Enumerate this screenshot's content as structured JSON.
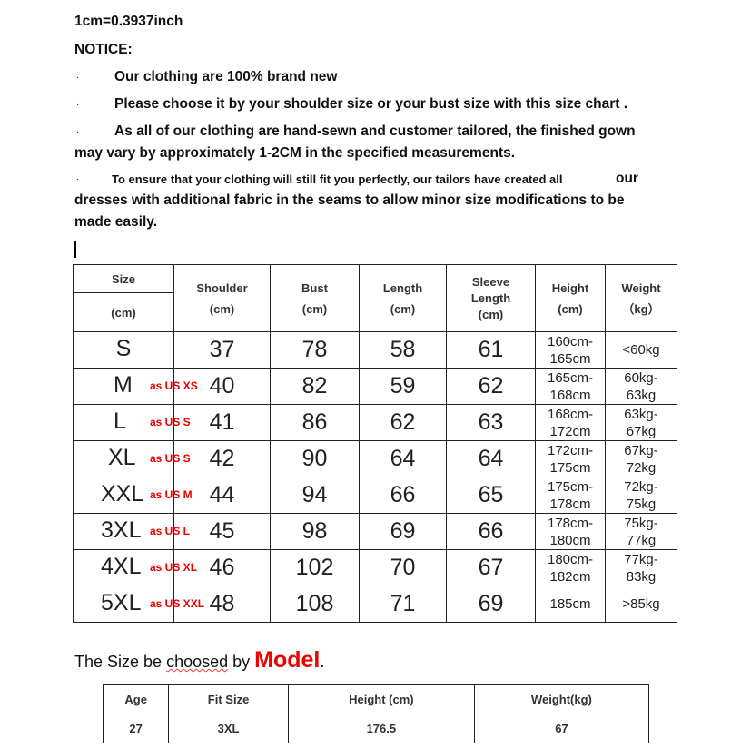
{
  "conversion": "1cm=0.3937inch",
  "notice_title": "NOTICE:",
  "notices": [
    "Our clothing are 100% brand new",
    "Please choose it by your shoulder size or your bust size with this size chart .",
    "As all of our clothing are hand-sewn and customer tailored, the finished gown",
    "may vary by approximately 1-2CM in the specified measurements.",
    "To ensure that your clothing will still fit you perfectly, our tailors have created all",
    "our",
    "dresses with additional fabric in the seams to allow minor size modifications to be",
    "made easily."
  ],
  "bullet": "·",
  "size_table": {
    "headers": {
      "size": "Size",
      "size_unit": "(cm)",
      "shoulder": [
        "Shoulder",
        "(cm)"
      ],
      "bust": [
        "Bust",
        "(cm)"
      ],
      "length": [
        "Length",
        "(cm)"
      ],
      "sleeve": [
        "Sleeve",
        "Length",
        "(cm)"
      ],
      "height": [
        "Height",
        "(cm)"
      ],
      "weight": [
        "Weight",
        "（kg）"
      ]
    },
    "rows": [
      {
        "size": "S",
        "us": "",
        "shoulder": "37",
        "bust": "78",
        "length": "58",
        "sleeve": "61",
        "height": [
          "160cm-",
          "165cm"
        ],
        "weight": [
          "<60kg",
          ""
        ]
      },
      {
        "size": "M",
        "us": "as US XS",
        "shoulder": "40",
        "bust": "82",
        "length": "59",
        "sleeve": "62",
        "height": [
          "165cm-",
          "168cm"
        ],
        "weight": [
          "60kg-",
          "63kg"
        ]
      },
      {
        "size": "L",
        "us": "as US S",
        "shoulder": "41",
        "bust": "86",
        "length": "62",
        "sleeve": "63",
        "height": [
          "168cm-",
          "172cm"
        ],
        "weight": [
          "63kg-",
          "67kg"
        ]
      },
      {
        "size": "XL",
        "us": "as US S",
        "shoulder": "42",
        "bust": "90",
        "length": "64",
        "sleeve": "64",
        "height": [
          "172cm-",
          "175cm"
        ],
        "weight": [
          "67kg-",
          "72kg"
        ]
      },
      {
        "size": "XXL",
        "us": "as US M",
        "shoulder": "44",
        "bust": "94",
        "length": "66",
        "sleeve": "65",
        "height": [
          "175cm-",
          "178cm"
        ],
        "weight": [
          "72kg-",
          "75kg"
        ]
      },
      {
        "size": "3XL",
        "us": "as US L",
        "shoulder": "45",
        "bust": "98",
        "length": "69",
        "sleeve": "66",
        "height": [
          "178cm-",
          "180cm"
        ],
        "weight": [
          "75kg-",
          "77kg"
        ]
      },
      {
        "size": "4XL",
        "us": "as US XL",
        "shoulder": "46",
        "bust": "102",
        "length": "70",
        "sleeve": "67",
        "height": [
          "180cm-",
          "182cm"
        ],
        "weight": [
          "77kg-",
          "83kg"
        ]
      },
      {
        "size": "5XL",
        "us": "as US XXL",
        "shoulder": "48",
        "bust": "108",
        "length": "71",
        "sleeve": "69",
        "height": [
          "185cm",
          ""
        ],
        "weight": [
          ">85kg",
          ""
        ]
      }
    ]
  },
  "caption": {
    "pre": "The Size be ",
    "wavy": "choosed",
    "post": " by ",
    "model": "Model",
    "end": "."
  },
  "model_table": {
    "headers": [
      "Age",
      "Fit Size",
      "Height (cm)",
      "Weight(kg)"
    ],
    "values": [
      "27",
      "3XL",
      "176.5",
      "67"
    ]
  }
}
